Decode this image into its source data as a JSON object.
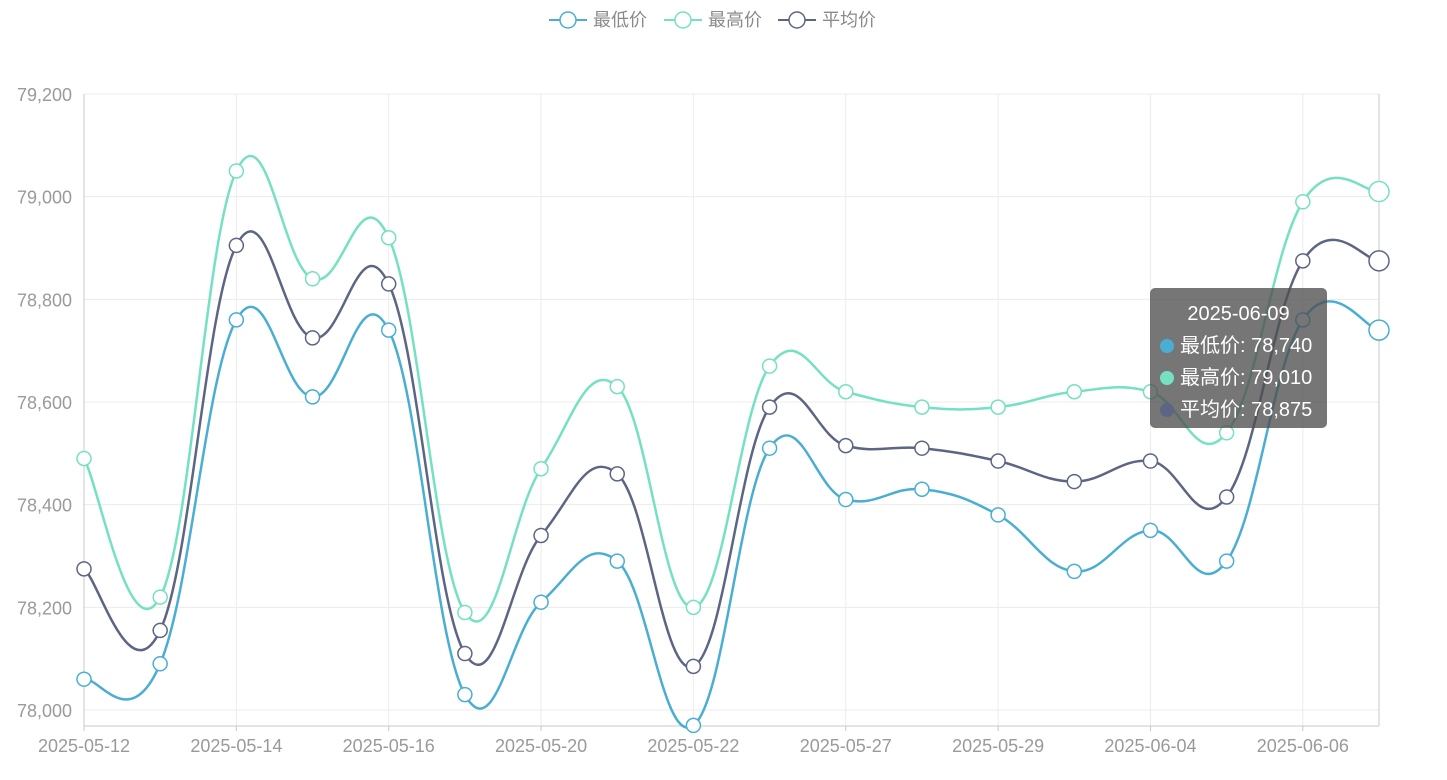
{
  "chart_data": {
    "type": "line",
    "smooth": true,
    "x": [
      "2025-05-12",
      "2025-05-13",
      "2025-05-14",
      "2025-05-15",
      "2025-05-16",
      "2025-05-19",
      "2025-05-20",
      "2025-05-21",
      "2025-05-22",
      "2025-05-23",
      "2025-05-27",
      "2025-05-28",
      "2025-05-29",
      "2025-05-30",
      "2025-06-04",
      "2025-06-05",
      "2025-06-06",
      "2025-06-09"
    ],
    "x_tick_labels": [
      "2025-05-12",
      "2025-05-14",
      "2025-05-16",
      "2025-05-20",
      "2025-05-22",
      "2025-05-27",
      "2025-05-29",
      "2025-06-04",
      "2025-06-06"
    ],
    "x_tick_indices": [
      0,
      2,
      4,
      6,
      8,
      10,
      12,
      14,
      16
    ],
    "ylim": [
      78000,
      79200
    ],
    "y_ticks": [
      78000,
      78200,
      78400,
      78600,
      78800,
      79000,
      79200
    ],
    "y_tick_labels": [
      "78,000",
      "78,200",
      "78,400",
      "78,600",
      "78,800",
      "79,000",
      "79,200"
    ],
    "grid": true,
    "legend_position": "top-center",
    "series": [
      {
        "name": "最低价",
        "color": "#4aaed3",
        "values": [
          78060,
          78090,
          78760,
          78610,
          78740,
          78030,
          78210,
          78290,
          77970,
          78510,
          78410,
          78430,
          78380,
          78270,
          78350,
          78290,
          78760,
          78740
        ]
      },
      {
        "name": "最高价",
        "color": "#75e0c2",
        "values": [
          78490,
          78220,
          79050,
          78840,
          78920,
          78190,
          78470,
          78630,
          78200,
          78670,
          78620,
          78590,
          78590,
          78620,
          78620,
          78540,
          78990,
          79010
        ]
      },
      {
        "name": "平均价",
        "color": "#5d6584",
        "values": [
          78275,
          78155,
          78905,
          78725,
          78830,
          78110,
          78340,
          78460,
          78085,
          78590,
          78515,
          78510,
          78485,
          78445,
          78485,
          78415,
          78875,
          78875
        ]
      }
    ],
    "tooltip": {
      "title": "2025-06-09",
      "rows": [
        {
          "label": "最低价: 78,740",
          "color": "#4aaed3"
        },
        {
          "label": "最高价: 79,010",
          "color": "#75e0c2"
        },
        {
          "label": "平均价: 78,875",
          "color": "#5d6584"
        }
      ]
    }
  }
}
